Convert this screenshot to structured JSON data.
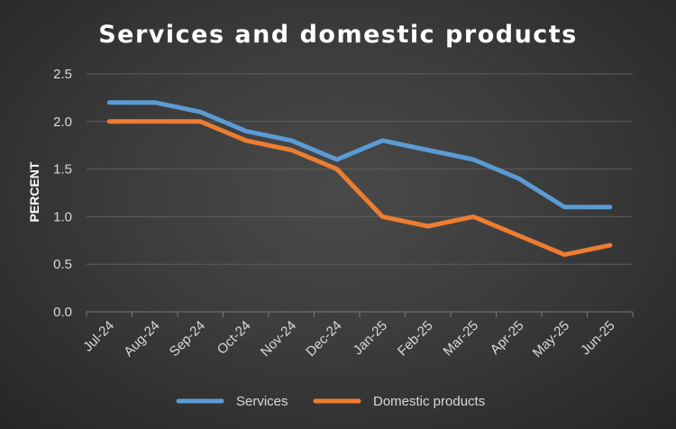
{
  "chart_data": {
    "type": "line",
    "title": "Services and domestic products",
    "xlabel": "",
    "ylabel": "PERCENT",
    "categories": [
      "Jul-24",
      "Aug-24",
      "Sep-24",
      "Oct-24",
      "Nov-24",
      "Dec-24",
      "Jan-25",
      "Feb-25",
      "Mar-25",
      "Apr-25",
      "May-25",
      "Jun-25"
    ],
    "ylim": [
      0,
      2.5
    ],
    "yticks": [
      "0.0",
      "0.5",
      "1.0",
      "1.5",
      "2.0",
      "2.5"
    ],
    "grid": true,
    "legend_position": "bottom",
    "series": [
      {
        "name": "Services",
        "color": "#5b9bd5",
        "values": [
          2.2,
          2.2,
          2.1,
          1.9,
          1.8,
          1.6,
          1.8,
          1.7,
          1.6,
          1.4,
          1.1,
          1.1
        ]
      },
      {
        "name": "Domestic products",
        "color": "#ed7d31",
        "values": [
          2.0,
          2.0,
          2.0,
          1.8,
          1.7,
          1.5,
          1.0,
          0.9,
          1.0,
          0.8,
          0.6,
          0.7
        ]
      }
    ]
  }
}
